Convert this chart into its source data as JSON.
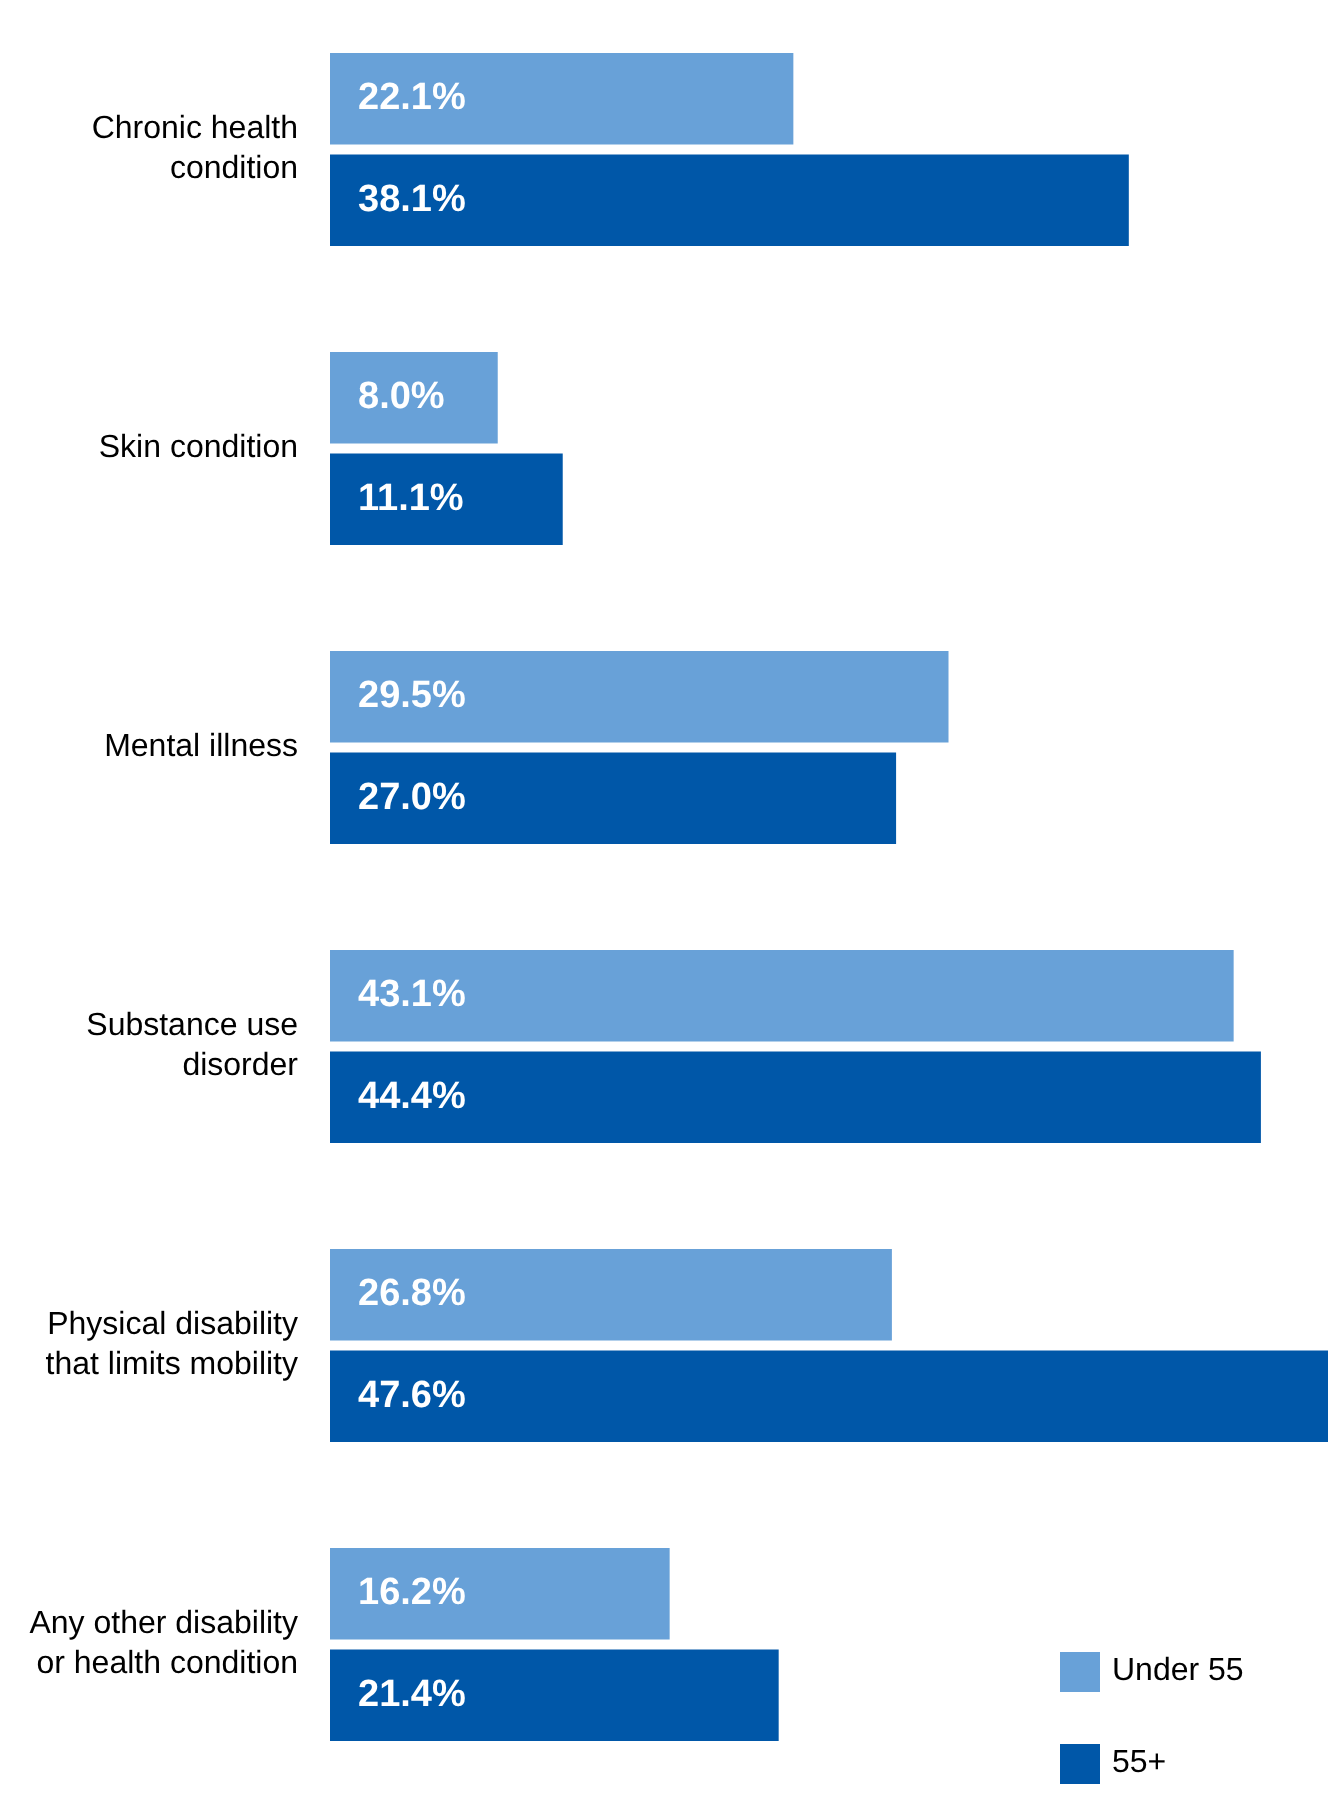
{
  "chart_data": {
    "type": "bar",
    "orientation": "horizontal",
    "categories": [
      "Chronic health condition",
      "Skin condition",
      "Mental illness",
      "Substance use disorder",
      "Physical disability that limits mobility",
      "Any other disability or health condition"
    ],
    "series": [
      {
        "name": "Under 55",
        "color": "#68a1d8",
        "values": [
          22.1,
          8.0,
          29.5,
          43.1,
          26.8,
          16.2
        ],
        "value_labels": [
          "22.1%",
          "8.0%",
          "29.5%",
          "43.1%",
          "26.8%",
          "16.2%"
        ]
      },
      {
        "name": "55+",
        "color": "#0057a8",
        "values": [
          38.1,
          11.1,
          27.0,
          44.4,
          47.6,
          21.4
        ],
        "value_labels": [
          "38.1%",
          "11.1%",
          "27.0%",
          "44.4%",
          "47.6%",
          "21.4%"
        ]
      }
    ],
    "legend": "bottom right"
  }
}
